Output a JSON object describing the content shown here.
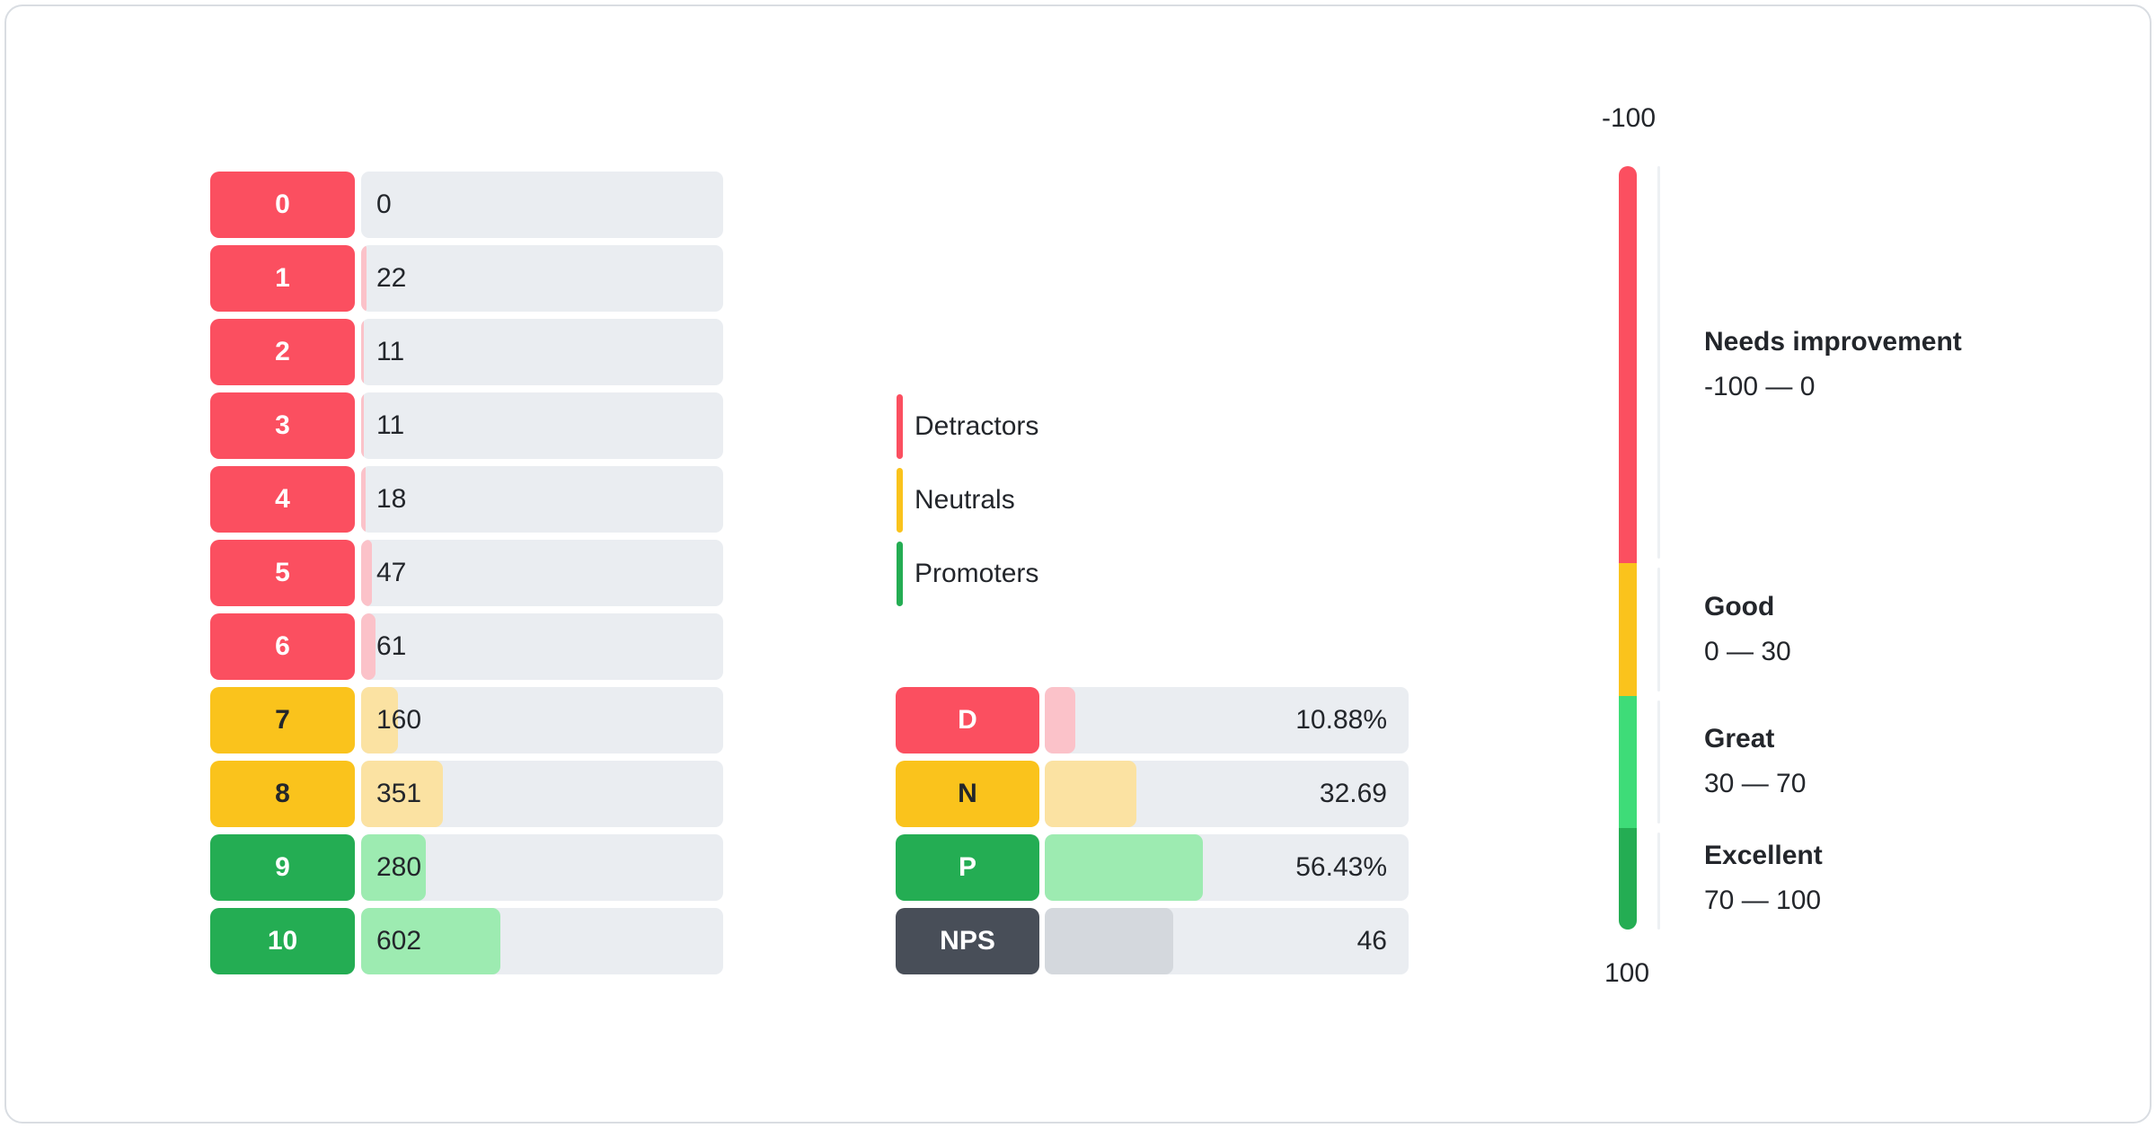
{
  "palette": {
    "text_dark": "#23262B",
    "detractor": "#FB4F60",
    "detractor_light": "#FBC2C9",
    "neutral": "#FAC31C",
    "neutral_light": "#FBE2A2",
    "promoter": "#24AD53",
    "promoter_light": "#9DEBB1",
    "nps": "#484E58",
    "nps_light": "#D4D8DD",
    "track": "#EAEDF1",
    "gauge_great": "#3EDC78",
    "axis_line": "#EDF0F3",
    "card_border": "#D9DDE2"
  },
  "legend": {
    "items": [
      {
        "label": "Detractors",
        "color_key": "detractor"
      },
      {
        "label": "Neutrals",
        "color_key": "neutral"
      },
      {
        "label": "Promoters",
        "color_key": "promoter"
      }
    ]
  },
  "chart_data": [
    {
      "type": "bar",
      "orientation": "horizontal",
      "title": "",
      "categories": [
        "0",
        "1",
        "2",
        "3",
        "4",
        "5",
        "6",
        "7",
        "8",
        "9",
        "10"
      ],
      "values": [
        0,
        22,
        11,
        11,
        18,
        47,
        61,
        160,
        351,
        280,
        602
      ],
      "groups": [
        "detractor",
        "detractor",
        "detractor",
        "detractor",
        "detractor",
        "detractor",
        "detractor",
        "neutral",
        "neutral",
        "promoter",
        "promoter"
      ],
      "total": 1563,
      "xlim": [
        0,
        1563
      ],
      "grid": false
    },
    {
      "type": "bar",
      "orientation": "horizontal",
      "title": "",
      "categories": [
        "D",
        "N",
        "P",
        "NPS"
      ],
      "values": [
        10.88,
        32.69,
        56.43,
        46
      ],
      "value_labels": [
        "10.88%",
        "32.69",
        "56.43%",
        "46"
      ],
      "groups": [
        "detractor",
        "neutral",
        "promoter",
        "nps"
      ],
      "xlim": [
        0,
        100
      ],
      "grid": false
    },
    {
      "type": "gauge",
      "orientation": "vertical",
      "min": -100,
      "max": 100,
      "top_label": "-100",
      "bottom_label": "100",
      "zones": [
        {
          "label": "Needs improvement",
          "range_label": "-100 — 0",
          "from": -100,
          "to": 0,
          "color_key": "detractor",
          "height_pct": 52.0
        },
        {
          "label": "Good",
          "range_label": "0 — 30",
          "from": 0,
          "to": 30,
          "color_key": "neutral",
          "height_pct": 17.4
        },
        {
          "label": "Great",
          "range_label": "30 — 70",
          "from": 30,
          "to": 70,
          "color_key": "gauge_great",
          "height_pct": 17.3
        },
        {
          "label": "Excellent",
          "range_label": "70 — 100",
          "from": 70,
          "to": 100,
          "color_key": "promoter",
          "height_pct": 13.3
        }
      ]
    }
  ]
}
